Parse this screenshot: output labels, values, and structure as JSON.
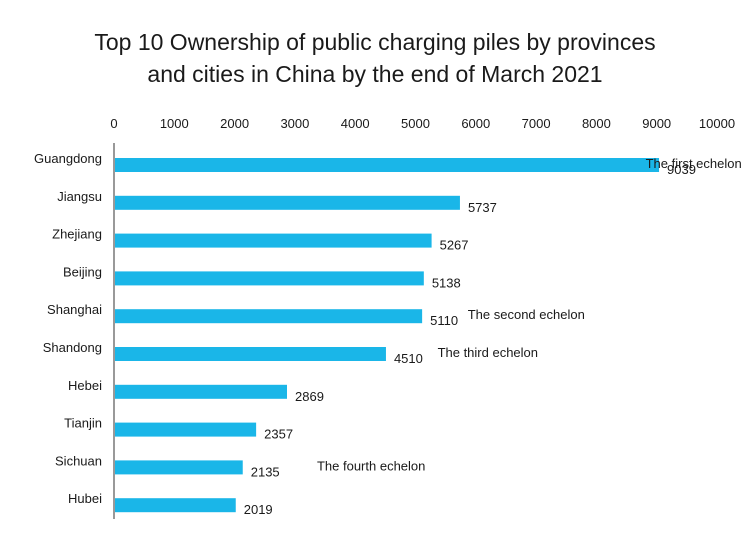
{
  "chart_data": {
    "type": "bar",
    "orientation": "horizontal",
    "title_line1": "Top 10 Ownership of public charging piles by provinces",
    "title_line2": "and cities in China by the end of March 2021",
    "categories": [
      "Guangdong",
      "Jiangsu",
      "Zhejiang",
      "Beijing",
      "Shanghai",
      "Shandong",
      "Hebei",
      "Tianjin",
      "Sichuan",
      "Hubei"
    ],
    "values": [
      9039,
      5737,
      5267,
      5138,
      5110,
      4510,
      2869,
      2357,
      2135,
      2019
    ],
    "value_labels": [
      "9039",
      "5737",
      "5267",
      "5138",
      "5110",
      "4510",
      "2869",
      "2357",
      "2135",
      "2019"
    ],
    "xlim": [
      0,
      10000
    ],
    "xticks": [
      "0",
      "1000",
      "2000",
      "3000",
      "4000",
      "5000",
      "6000",
      "7000",
      "8000",
      "9000",
      "10000"
    ],
    "axis_position": "top",
    "grid": false,
    "bar_color": "#1ab6e8",
    "annotations": [
      {
        "text": "The first echelon",
        "category": "Guangdong",
        "value": 8700
      },
      {
        "text": "The second echelon",
        "category": "Shanghai",
        "value": 5750
      },
      {
        "text": "The third echelon",
        "category": "Shandong",
        "value": 5250
      },
      {
        "text": "The fourth echelon",
        "category": "Sichuan",
        "value": 3250
      }
    ]
  }
}
